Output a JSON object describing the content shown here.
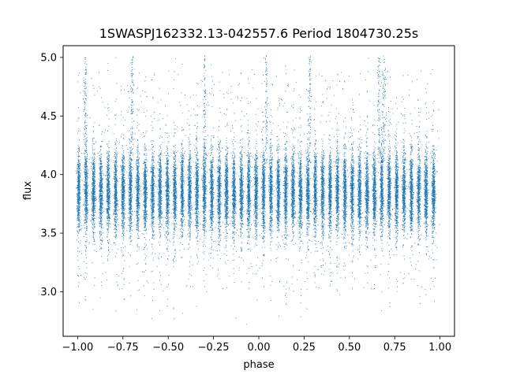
{
  "chart_data": {
    "type": "scatter",
    "title": "1SWASPJ162332.13-042557.6 Period 1804730.25s",
    "xlabel": "phase",
    "ylabel": "flux",
    "xlim": [
      -1.08,
      1.08
    ],
    "ylim": [
      2.62,
      5.1
    ],
    "x_ticks": [
      -1.0,
      -0.75,
      -0.5,
      -0.25,
      0.0,
      0.25,
      0.5,
      0.75,
      1.0
    ],
    "x_tick_labels": [
      "−1.00",
      "−0.75",
      "−0.50",
      "−0.25",
      "0.00",
      "0.25",
      "0.50",
      "0.75",
      "1.00"
    ],
    "y_ticks": [
      3.0,
      3.5,
      4.0,
      4.5,
      5.0
    ],
    "y_tick_labels": [
      "3.0",
      "3.5",
      "4.0",
      "4.5",
      "5.0"
    ],
    "grid": false,
    "legend": "none",
    "marker_color": "#1f77b4",
    "series": [
      {
        "description_of_distribution": "dense phase-folded point clusters",
        "x_range": [
          -1.0,
          1.0
        ],
        "cluster_spacing": 0.0408,
        "y_center": 3.85,
        "y_core_range": [
          3.5,
          4.2
        ],
        "y_full_range": [
          2.72,
          5.02
        ],
        "spike_phases_to_5": [
          -0.96,
          -0.7,
          -0.3,
          0.04,
          0.28,
          0.66,
          0.69
        ]
      }
    ]
  }
}
